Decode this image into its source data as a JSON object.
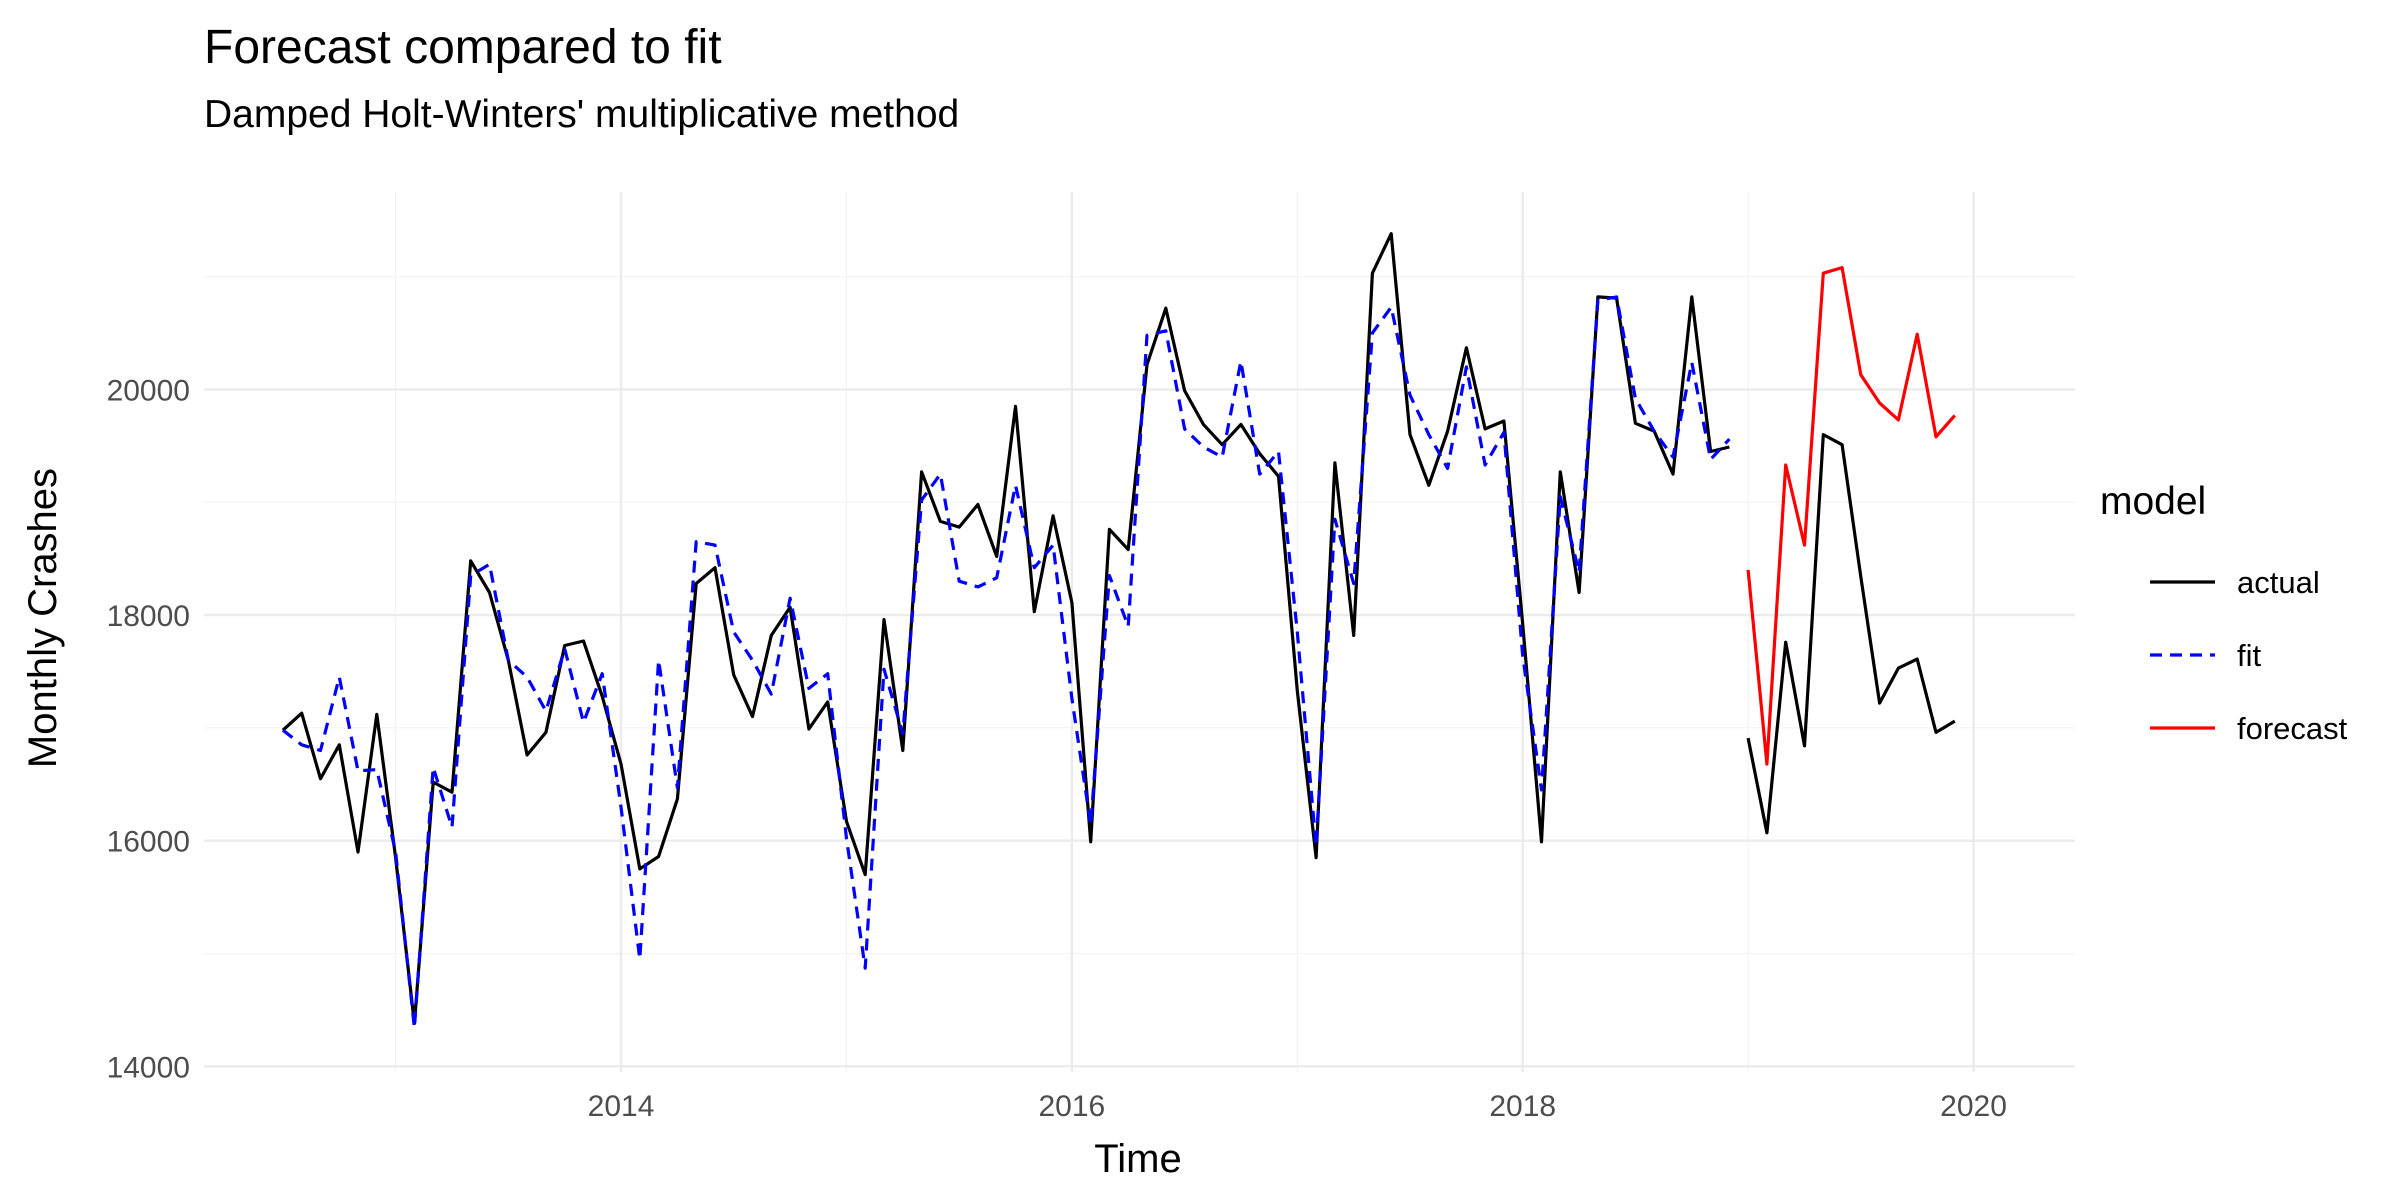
{
  "chart_data": {
    "type": "line",
    "title": "Forecast compared to fit",
    "subtitle": "Damped Holt-Winters' multiplicative method",
    "xlabel": "Time",
    "ylabel": "Monthly Crashes",
    "xlim": [
      2012.15,
      2020.45
    ],
    "ylim": [
      13950,
      21750
    ],
    "x_ticks": [
      2014,
      2016,
      2018,
      2020
    ],
    "x_tick_labels": [
      "2014",
      "2016",
      "2018",
      "2020"
    ],
    "x_minor_ticks": [
      2013,
      2015,
      2017,
      2019
    ],
    "y_ticks": [
      14000,
      16000,
      18000,
      20000
    ],
    "y_tick_labels": [
      "14000",
      "16000",
      "18000",
      "20000"
    ],
    "y_minor_ticks": [
      15000,
      17000,
      19000,
      21000
    ],
    "grid": true,
    "legend": {
      "title": "model",
      "placement": "right"
    },
    "series": [
      {
        "name": "actual",
        "color": "#000000",
        "dash": "solid",
        "start": [
          2012,
          7
        ],
        "values": [
          16980,
          17130,
          16550,
          16850,
          15900,
          17120,
          15850,
          14380,
          16520,
          16430,
          18480,
          18200,
          17600,
          16760,
          16960,
          17730,
          17770,
          17280,
          16680,
          15750,
          15860,
          16370,
          18280,
          18420,
          17470,
          17100,
          17820,
          18070,
          16990,
          17230,
          16170,
          15700,
          17960,
          16800,
          19270,
          18830,
          18780,
          18980,
          18520,
          19850,
          18030,
          18880,
          18110,
          15990,
          18760,
          18580,
          20220,
          20720,
          19990,
          19690,
          19510,
          19690,
          19430,
          19230,
          17330,
          15850,
          19350,
          17820,
          21030,
          21380,
          19600,
          19150,
          19630,
          20370,
          19650,
          19720,
          17920,
          15990,
          19270,
          18200,
          20820,
          20810,
          19700,
          19630,
          19250,
          20820,
          19450,
          19490
        ]
      },
      {
        "name": "fit",
        "color": "#0000ff",
        "dash": "dashed",
        "start": [
          2012,
          7
        ],
        "values": [
          16980,
          16850,
          16800,
          17450,
          16620,
          16630,
          15900,
          14340,
          16650,
          16120,
          18350,
          18450,
          17600,
          17450,
          17150,
          17700,
          17050,
          17480,
          16300,
          14950,
          17600,
          16470,
          18650,
          18620,
          17850,
          17600,
          17300,
          18150,
          17350,
          17480,
          16020,
          14870,
          17520,
          16950,
          19020,
          19250,
          18300,
          18250,
          18330,
          19150,
          18420,
          18620,
          17260,
          16140,
          18350,
          17900,
          20480,
          20520,
          19650,
          19490,
          19400,
          20250,
          19250,
          19450,
          17850,
          15950,
          18850,
          18280,
          20500,
          20730,
          19950,
          19600,
          19300,
          20200,
          19330,
          19620,
          17640,
          16450,
          19050,
          18380,
          20790,
          20820,
          19920,
          19630,
          19400,
          20240,
          19380,
          19560
        ]
      },
      {
        "name": "forecast",
        "color": "#ff0000",
        "dash": "solid",
        "start": [
          2019,
          1
        ],
        "values": [
          18400,
          16680,
          19330,
          18620,
          21030,
          21080,
          20130,
          19880,
          19730,
          20490,
          19580,
          19770
        ]
      },
      {
        "name": "actual",
        "color": "#000000",
        "dash": "solid",
        "legend": false,
        "start": [
          2019,
          1
        ],
        "values": [
          16910,
          16070,
          17760,
          16840,
          19600,
          19510,
          18340,
          17220,
          17530,
          17610,
          16960,
          17060
        ]
      }
    ]
  }
}
